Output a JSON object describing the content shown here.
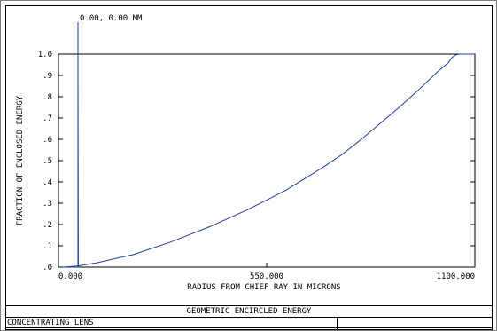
{
  "chart_data": {
    "type": "line",
    "field_label": "0.00, 0.00 MM",
    "xlabel": "RADIUS FROM CHIEF RAY IN MICRONS",
    "ylabel": "FRACTION OF ENCLOSED ENERGY",
    "xlim": [
      0,
      1100
    ],
    "ylim": [
      0,
      1.0
    ],
    "x_tick_labels": [
      "0.000",
      "550.000",
      "1100.000"
    ],
    "y_tick_labels": [
      ".0",
      ".1",
      ".2",
      ".3",
      ".4",
      ".5",
      ".6",
      ".7",
      ".8",
      ".9",
      "1.0"
    ],
    "grid": false,
    "series": [
      {
        "color": "#1f3fa8",
        "x": [
          0,
          1,
          12,
          50,
          100,
          150,
          200,
          250,
          300,
          350,
          400,
          450,
          500,
          550,
          600,
          650,
          700,
          750,
          800,
          850,
          900,
          950,
          1000,
          1030,
          1040,
          1050,
          1060,
          1100
        ],
        "y": [
          1.0,
          0.0,
          0.0,
          0.005,
          0.02,
          0.04,
          0.06,
          0.09,
          0.12,
          0.155,
          0.19,
          0.23,
          0.27,
          0.315,
          0.36,
          0.415,
          0.47,
          0.53,
          0.6,
          0.675,
          0.75,
          0.83,
          0.915,
          0.96,
          0.985,
          0.997,
          1.0,
          1.0
        ]
      }
    ]
  },
  "footer": {
    "title": "GEOMETRIC ENCIRCLED ENERGY",
    "lens_label": "CONCENTRATING LENS"
  }
}
